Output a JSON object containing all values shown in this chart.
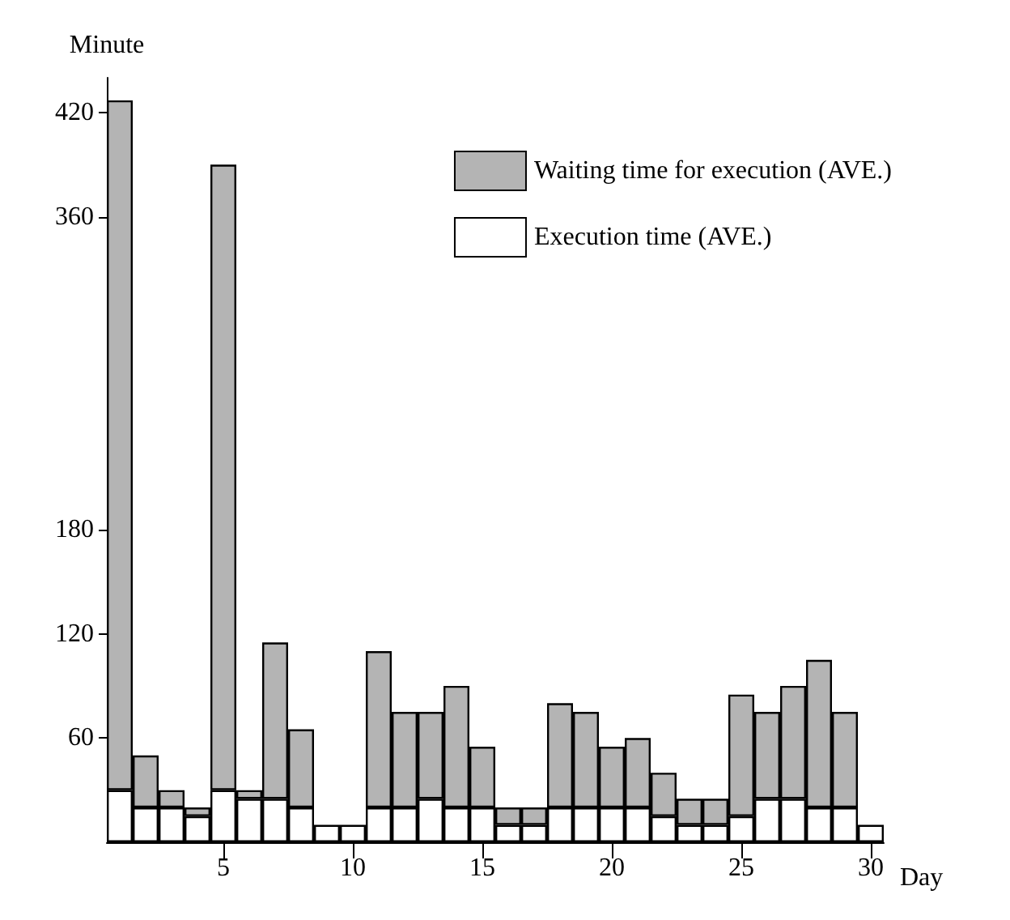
{
  "chart_data": {
    "type": "bar",
    "stacked": true,
    "ylabel": "Minute",
    "xlabel": "Day",
    "categories": [
      null,
      null,
      null,
      null,
      "5",
      null,
      null,
      null,
      null,
      "10",
      null,
      null,
      null,
      null,
      "15",
      null,
      null,
      null,
      null,
      "20",
      null,
      null,
      null,
      null,
      "25",
      null,
      null,
      null,
      null,
      "30"
    ],
    "series": [
      {
        "name": "Execution time (AVE.)",
        "color": "#ffffff",
        "values": [
          30,
          20,
          20,
          15,
          30,
          25,
          25,
          20,
          10,
          10,
          20,
          20,
          25,
          20,
          20,
          10,
          10,
          20,
          20,
          20,
          20,
          15,
          10,
          10,
          15,
          25,
          25,
          20,
          20,
          10
        ]
      },
      {
        "name": "Waiting time for execution (AVE.)",
        "color": "#b4b4b4",
        "values": [
          397,
          30,
          10,
          5,
          360,
          5,
          90,
          45,
          null,
          null,
          90,
          55,
          50,
          70,
          35,
          10,
          10,
          60,
          55,
          35,
          40,
          25,
          15,
          15,
          70,
          50,
          65,
          85,
          55,
          null
        ]
      }
    ],
    "ylim": [
      0,
      440
    ],
    "yticks": [
      60,
      120,
      180,
      360,
      420
    ],
    "grid": false,
    "legend": "top right"
  }
}
